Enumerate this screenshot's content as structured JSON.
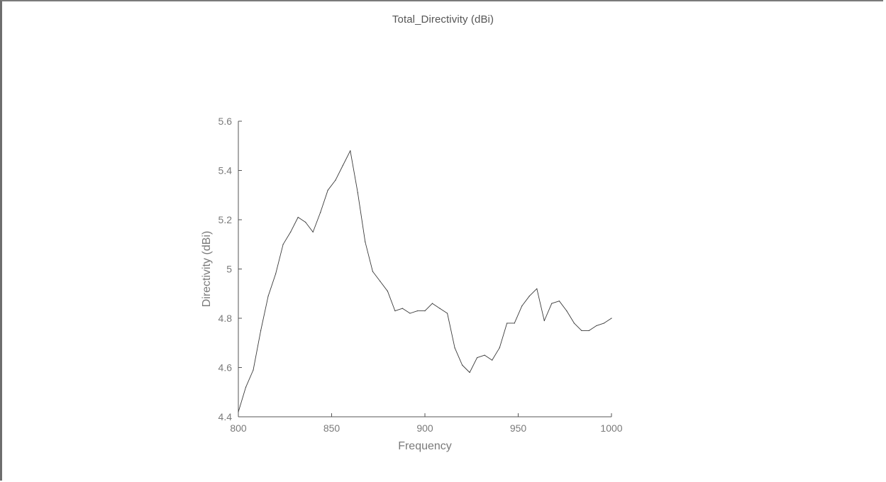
{
  "window": {
    "title": "Total_Directivity (dBi)"
  },
  "colors": {
    "line": "#3a3a3a",
    "axis": "#555555",
    "text": "#7a7a7a",
    "frame": "#6e6e6e"
  },
  "chart_data": {
    "type": "line",
    "title": "",
    "xlabel": "Frequency",
    "ylabel": "Directivity (dBi)",
    "xlim": [
      800,
      1000
    ],
    "ylim": [
      4.4,
      5.6
    ],
    "grid": false,
    "x_ticks": [
      800,
      850,
      900,
      950,
      1000
    ],
    "x_tick_labels": [
      "800",
      "850",
      "900",
      "950",
      "1000"
    ],
    "y_ticks": [
      4.4,
      4.6,
      4.8,
      5.0,
      5.2,
      5.4,
      5.6
    ],
    "y_tick_labels": [
      "4.4",
      "4.6",
      "4.8",
      "5",
      "5.2",
      "5.4",
      "5.6"
    ],
    "series": [
      {
        "x": [
          800,
          804,
          808,
          812,
          816,
          820,
          824,
          828,
          832,
          836,
          840,
          844,
          848,
          852,
          856,
          860,
          864,
          868,
          872,
          876,
          880,
          884,
          888,
          892,
          896,
          900,
          904,
          908,
          912,
          916,
          920,
          924,
          928,
          932,
          936,
          940,
          944,
          948,
          952,
          956,
          960,
          964,
          968,
          972,
          976,
          980,
          984,
          988,
          992,
          996,
          1000
        ],
        "values": [
          4.42,
          4.52,
          4.59,
          4.75,
          4.89,
          4.98,
          5.1,
          5.15,
          5.21,
          5.19,
          5.15,
          5.23,
          5.32,
          5.36,
          5.42,
          5.48,
          5.31,
          5.11,
          4.99,
          4.95,
          4.91,
          4.83,
          4.84,
          4.82,
          4.83,
          4.83,
          4.86,
          4.84,
          4.82,
          4.68,
          4.61,
          4.58,
          4.64,
          4.65,
          4.63,
          4.68,
          4.78,
          4.78,
          4.85,
          4.89,
          4.92,
          4.79,
          4.86,
          4.87,
          4.83,
          4.78,
          4.75,
          4.75,
          4.77,
          4.78,
          4.8
        ]
      }
    ]
  }
}
